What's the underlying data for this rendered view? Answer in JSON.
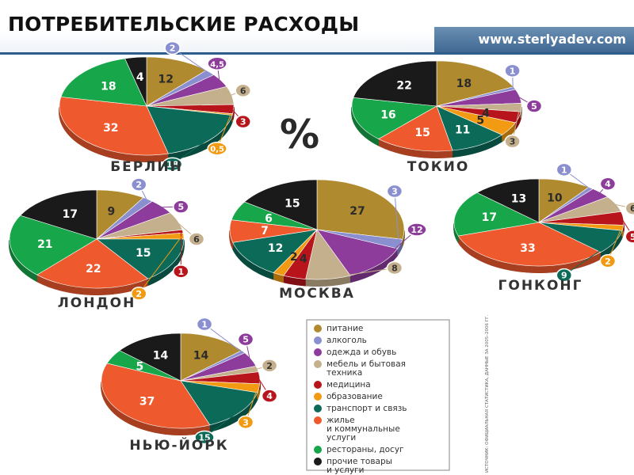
{
  "header": {
    "title": "ПОТРЕБИТЕЛЬСКИЕ РАСХОДЫ",
    "site": "www.sterlyadev.com"
  },
  "percent_sign": "%",
  "source_note": "ИСТОЧНИК: ОФИЦИАЛЬНАЯ СТАТИСТИКА, ДАННЫЕ ЗА 2005–2006 ГГ.",
  "colors": {
    "питание": "#b08a2e",
    "алкоголь": "#8a8fd0",
    "одежда и обувь": "#8d3c9c",
    "мебель и бытовая техника": "#c4b08c",
    "медицина": "#b8141c",
    "образование": "#f29a12",
    "транспорт и связь": "#0c6b58",
    "жилье и коммунальные услуги": "#ee5a2e",
    "рестораны, досуг": "#18a64a",
    "прочие товары и услуги": "#1a1a1a"
  },
  "chart_data": {
    "type": "pie",
    "unit": "%",
    "legend": [
      {
        "key": "питание",
        "lines": [
          "питание"
        ]
      },
      {
        "key": "алкоголь",
        "lines": [
          "алкоголь"
        ]
      },
      {
        "key": "одежда и обувь",
        "lines": [
          "одежда и обувь"
        ]
      },
      {
        "key": "мебель и бытовая техника",
        "lines": [
          "мебель и бытовая",
          "техника"
        ]
      },
      {
        "key": "медицина",
        "lines": [
          "медицина"
        ]
      },
      {
        "key": "образование",
        "lines": [
          "образование"
        ]
      },
      {
        "key": "транспорт и связь",
        "lines": [
          "транспорт и связь"
        ]
      },
      {
        "key": "жилье и коммунальные услуги",
        "lines": [
          "жилье",
          "и коммунальные",
          "услуги"
        ]
      },
      {
        "key": "рестораны, досуг",
        "lines": [
          "рестораны, досуг"
        ]
      },
      {
        "key": "прочие товары и услуги",
        "lines": [
          "прочие товары",
          "и услуги"
        ]
      }
    ],
    "cities": [
      {
        "name": "БЕРЛИН",
        "slices": [
          {
            "key": "питание",
            "value": 12,
            "label": "12"
          },
          {
            "key": "алкоголь",
            "value": 2,
            "label": "2"
          },
          {
            "key": "одежда и обувь",
            "value": 4.5,
            "label": "4,5"
          },
          {
            "key": "мебель и бытовая техника",
            "value": 6,
            "label": "6"
          },
          {
            "key": "медицина",
            "value": 3,
            "label": "3"
          },
          {
            "key": "образование",
            "value": 0.5,
            "label": "0,5"
          },
          {
            "key": "транспорт и связь",
            "value": 18,
            "label": "18"
          },
          {
            "key": "жилье и коммунальные услуги",
            "value": 32,
            "label": "32"
          },
          {
            "key": "рестораны, досуг",
            "value": 18,
            "label": "18"
          },
          {
            "key": "прочие товары и услуги",
            "value": 4,
            "label": "4"
          }
        ]
      },
      {
        "name": "ТОКИО",
        "slices": [
          {
            "key": "питание",
            "value": 18,
            "label": "18"
          },
          {
            "key": "алкоголь",
            "value": 1,
            "label": "1"
          },
          {
            "key": "одежда и обувь",
            "value": 5,
            "label": "5"
          },
          {
            "key": "мебель и бытовая техника",
            "value": 3,
            "label": "3"
          },
          {
            "key": "медицина",
            "value": 4,
            "label": "4"
          },
          {
            "key": "образование",
            "value": 5,
            "label": "5"
          },
          {
            "key": "транспорт и связь",
            "value": 11,
            "label": "11"
          },
          {
            "key": "жилье и коммунальные услуги",
            "value": 15,
            "label": "15"
          },
          {
            "key": "рестораны, досуг",
            "value": 16,
            "label": "16"
          },
          {
            "key": "прочие товары и услуги",
            "value": 22,
            "label": "22"
          }
        ]
      },
      {
        "name": "ЛОНДОН",
        "slices": [
          {
            "key": "питание",
            "value": 9,
            "label": "9"
          },
          {
            "key": "алкоголь",
            "value": 2,
            "label": "2"
          },
          {
            "key": "одежда и обувь",
            "value": 5,
            "label": "5"
          },
          {
            "key": "мебель и бытовая техника",
            "value": 6,
            "label": "6"
          },
          {
            "key": "медицина",
            "value": 1,
            "label": "1"
          },
          {
            "key": "образование",
            "value": 2,
            "label": "2"
          },
          {
            "key": "транспорт и связь",
            "value": 15,
            "label": "15"
          },
          {
            "key": "жилье и коммунальные услуги",
            "value": 22,
            "label": "22"
          },
          {
            "key": "рестораны, досуг",
            "value": 21,
            "label": "21"
          },
          {
            "key": "прочие товары и услуги",
            "value": 17,
            "label": "17"
          }
        ]
      },
      {
        "name": "МОСКВА",
        "slices": [
          {
            "key": "питание",
            "value": 27,
            "label": "27"
          },
          {
            "key": "алкоголь",
            "value": 3,
            "label": "3"
          },
          {
            "key": "одежда и обувь",
            "value": 12,
            "label": "12"
          },
          {
            "key": "мебель и бытовая техника",
            "value": 8,
            "label": "8"
          },
          {
            "key": "медицина",
            "value": 4,
            "label": "4"
          },
          {
            "key": "образование",
            "value": 2,
            "label": "2"
          },
          {
            "key": "транспорт и связь",
            "value": 12,
            "label": "12"
          },
          {
            "key": "жилье и коммунальные услуги",
            "value": 7,
            "label": "7"
          },
          {
            "key": "рестораны, досуг",
            "value": 6,
            "label": "6"
          },
          {
            "key": "прочие товары и услуги",
            "value": 15,
            "label": "15"
          }
        ]
      },
      {
        "name": "ГОНКОНГ",
        "slices": [
          {
            "key": "питание",
            "value": 10,
            "label": "10"
          },
          {
            "key": "алкоголь",
            "value": 1,
            "label": "1"
          },
          {
            "key": "одежда и обувь",
            "value": 4,
            "label": "4"
          },
          {
            "key": "мебель и бытовая техника",
            "value": 6,
            "label": "6"
          },
          {
            "key": "медицина",
            "value": 5,
            "label": "5"
          },
          {
            "key": "образование",
            "value": 2,
            "label": "2"
          },
          {
            "key": "транспорт и связь",
            "value": 9,
            "label": "9"
          },
          {
            "key": "жилье и коммунальные услуги",
            "value": 33,
            "label": "33"
          },
          {
            "key": "рестораны, досуг",
            "value": 17,
            "label": "17"
          },
          {
            "key": "прочие товары и услуги",
            "value": 13,
            "label": "13"
          }
        ]
      },
      {
        "name": "НЬЮ-ЙОРК",
        "slices": [
          {
            "key": "питание",
            "value": 14,
            "label": "14"
          },
          {
            "key": "алкоголь",
            "value": 1,
            "label": "1"
          },
          {
            "key": "одежда и обувь",
            "value": 5,
            "label": "5"
          },
          {
            "key": "мебель и бытовая техника",
            "value": 2,
            "label": "2"
          },
          {
            "key": "медицина",
            "value": 4,
            "label": "4"
          },
          {
            "key": "образование",
            "value": 3,
            "label": "3"
          },
          {
            "key": "транспорт и связь",
            "value": 15,
            "label": "15"
          },
          {
            "key": "жилье и коммунальные услуги",
            "value": 37,
            "label": "37"
          },
          {
            "key": "рестораны, досуг",
            "value": 5,
            "label": "5"
          },
          {
            "key": "прочие товары и услуги",
            "value": 14,
            "label": "14"
          }
        ]
      }
    ]
  }
}
